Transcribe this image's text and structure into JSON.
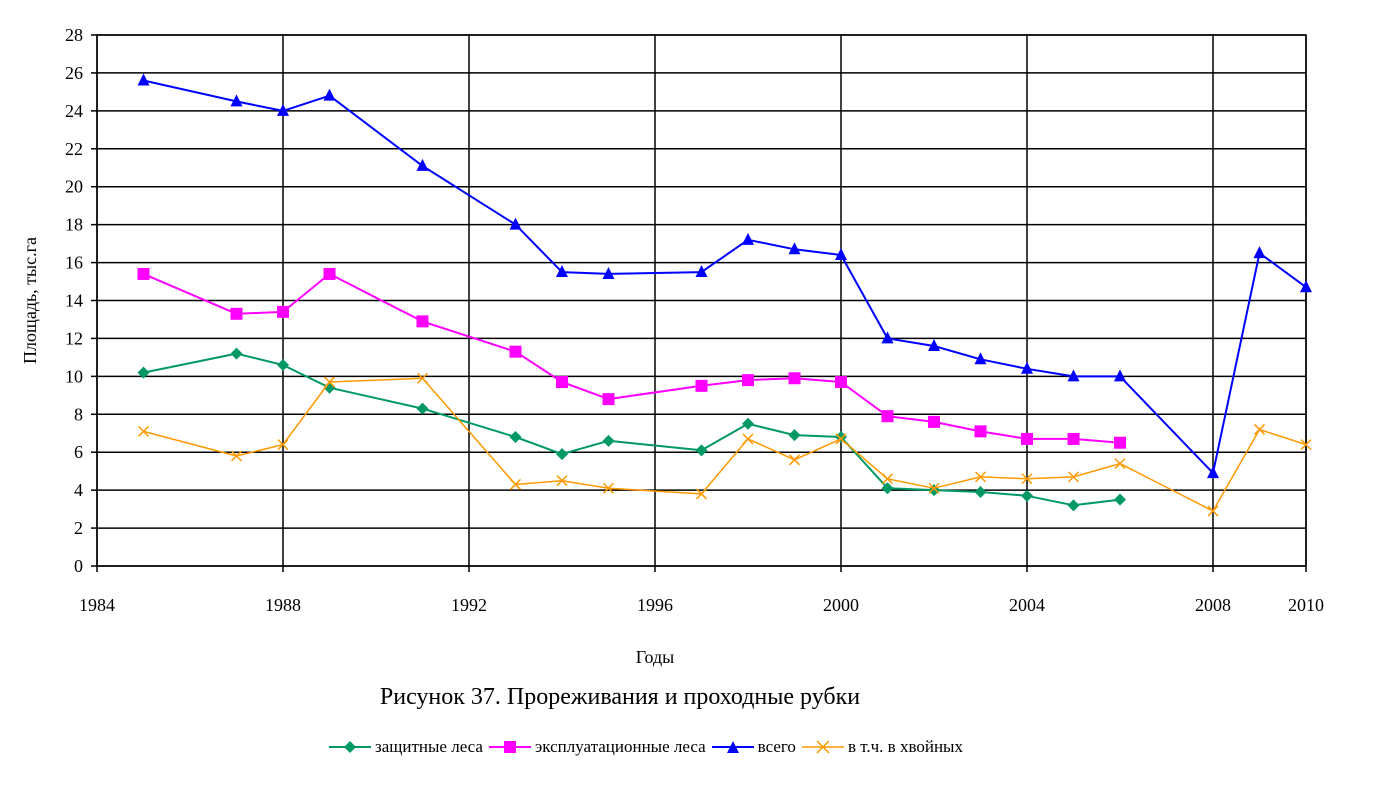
{
  "chart_data": {
    "type": "line",
    "title": "",
    "xlabel": "Годы",
    "ylabel": "Площадь, тыс.га",
    "xlim": [
      1984,
      2010
    ],
    "ylim": [
      0,
      28
    ],
    "x_ticks": [
      1984,
      1988,
      1992,
      1996,
      2000,
      2004,
      2008,
      2010
    ],
    "y_ticks": [
      0,
      2,
      4,
      6,
      8,
      10,
      12,
      14,
      16,
      18,
      20,
      22,
      24,
      26,
      28
    ],
    "grid": true,
    "legend_position": "bottom",
    "series": [
      {
        "name": "защитные леса",
        "color": "#009966",
        "marker": "diamond",
        "points": [
          [
            1985,
            10.2
          ],
          [
            1987,
            11.2
          ],
          [
            1988,
            10.6
          ],
          [
            1989,
            9.4
          ],
          [
            1991,
            8.3
          ],
          [
            1993,
            6.8
          ],
          [
            1994,
            5.9
          ],
          [
            1995,
            6.6
          ],
          [
            1997,
            6.1
          ],
          [
            1998,
            7.5
          ],
          [
            1999,
            6.9
          ],
          [
            2000,
            6.8
          ],
          [
            2001,
            4.1
          ],
          [
            2002,
            4.0
          ],
          [
            2003,
            3.9
          ],
          [
            2004,
            3.7
          ],
          [
            2005,
            3.2
          ],
          [
            2006,
            3.5
          ]
        ]
      },
      {
        "name": "эксплуатационные леса",
        "color": "#ff00ff",
        "marker": "square",
        "points": [
          [
            1985,
            15.4
          ],
          [
            1987,
            13.3
          ],
          [
            1988,
            13.4
          ],
          [
            1989,
            15.4
          ],
          [
            1991,
            12.9
          ],
          [
            1993,
            11.3
          ],
          [
            1994,
            9.7
          ],
          [
            1995,
            8.8
          ],
          [
            1997,
            9.5
          ],
          [
            1998,
            9.8
          ],
          [
            1999,
            9.9
          ],
          [
            2000,
            9.7
          ],
          [
            2001,
            7.9
          ],
          [
            2002,
            7.6
          ],
          [
            2003,
            7.1
          ],
          [
            2004,
            6.7
          ],
          [
            2005,
            6.7
          ],
          [
            2006,
            6.5
          ]
        ]
      },
      {
        "name": "всего",
        "color": "#0000ff",
        "marker": "triangle",
        "points": [
          [
            1985,
            25.6
          ],
          [
            1987,
            24.5
          ],
          [
            1988,
            24.0
          ],
          [
            1989,
            24.8
          ],
          [
            1991,
            21.1
          ],
          [
            1993,
            18.0
          ],
          [
            1994,
            15.5
          ],
          [
            1995,
            15.4
          ],
          [
            1997,
            15.5
          ],
          [
            1998,
            17.2
          ],
          [
            1999,
            16.7
          ],
          [
            2000,
            16.4
          ],
          [
            2001,
            12.0
          ],
          [
            2002,
            11.6
          ],
          [
            2003,
            10.9
          ],
          [
            2004,
            10.4
          ],
          [
            2005,
            10.0
          ],
          [
            2006,
            10.0
          ],
          [
            2008,
            4.9
          ],
          [
            2009,
            16.5
          ],
          [
            2010,
            14.7
          ]
        ]
      },
      {
        "name": "в т.ч. в хвойных",
        "color": "#ff9900",
        "marker": "x",
        "points": [
          [
            1985,
            7.1
          ],
          [
            1987,
            5.8
          ],
          [
            1988,
            6.4
          ],
          [
            1989,
            9.7
          ],
          [
            1991,
            9.9
          ],
          [
            1993,
            4.3
          ],
          [
            1994,
            4.5
          ],
          [
            1995,
            4.1
          ],
          [
            1997,
            3.8
          ],
          [
            1998,
            6.7
          ],
          [
            1999,
            5.6
          ],
          [
            2000,
            6.7
          ],
          [
            2001,
            4.6
          ],
          [
            2002,
            4.1
          ],
          [
            2003,
            4.7
          ],
          [
            2004,
            4.6
          ],
          [
            2005,
            4.7
          ],
          [
            2006,
            5.4
          ],
          [
            2008,
            2.9
          ],
          [
            2009,
            7.2
          ],
          [
            2010,
            6.4
          ]
        ]
      }
    ]
  },
  "caption": "Рисунок 37. Прореживания и проходные рубки"
}
